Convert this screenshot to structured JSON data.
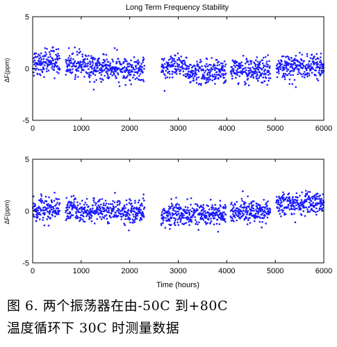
{
  "chart_data": [
    {
      "type": "scatter",
      "title": "Long Term Frequency Stability",
      "xlabel": "",
      "ylabel": "ΔF(ppm)",
      "xlim": [
        0,
        6000
      ],
      "ylim": [
        -5,
        5
      ],
      "xticks": [
        "0",
        "1000",
        "2000",
        "3000",
        "4000",
        "5000",
        "6000"
      ],
      "yticks": [
        "5",
        "0",
        "-5"
      ],
      "grid": false,
      "marker_color": "#1a1aff",
      "segments": [
        {
          "x_start": 0,
          "x_end": 560,
          "mean": 0.7,
          "spread": 0.9
        },
        {
          "x_start": 680,
          "x_end": 1150,
          "mean": 0.35,
          "spread": 0.75
        },
        {
          "x_start": 1150,
          "x_end": 2300,
          "mean": 0.0,
          "spread": 0.8
        },
        {
          "x_start": 2650,
          "x_end": 3200,
          "mean": 0.1,
          "spread": 0.75
        },
        {
          "x_start": 3200,
          "x_end": 3980,
          "mean": -0.4,
          "spread": 0.8
        },
        {
          "x_start": 4080,
          "x_end": 4900,
          "mean": -0.2,
          "spread": 0.8
        },
        {
          "x_start": 5020,
          "x_end": 6000,
          "mean": 0.2,
          "spread": 0.8
        }
      ]
    },
    {
      "type": "scatter",
      "title": "",
      "xlabel": "Time (hours)",
      "ylabel": "ΔF(ppm)",
      "xlim": [
        0,
        6000
      ],
      "ylim": [
        -5,
        5
      ],
      "xticks": [
        "0",
        "1000",
        "2000",
        "3000",
        "4000",
        "5000",
        "6000"
      ],
      "yticks": [
        "5",
        "0",
        "-5"
      ],
      "grid": false,
      "marker_color": "#1a1aff",
      "segments": [
        {
          "x_start": 0,
          "x_end": 560,
          "mean": 0.1,
          "spread": 0.75
        },
        {
          "x_start": 680,
          "x_end": 2300,
          "mean": 0.0,
          "spread": 0.75
        },
        {
          "x_start": 2650,
          "x_end": 3980,
          "mean": -0.3,
          "spread": 0.75
        },
        {
          "x_start": 4080,
          "x_end": 4900,
          "mean": -0.1,
          "spread": 0.7
        },
        {
          "x_start": 5020,
          "x_end": 6000,
          "mean": 0.7,
          "spread": 0.7
        }
      ]
    }
  ],
  "caption": {
    "line1": "图  6.   两个振荡器在由-50C  到+80C",
    "line2": "温度循环下 30C 时测量数据"
  }
}
